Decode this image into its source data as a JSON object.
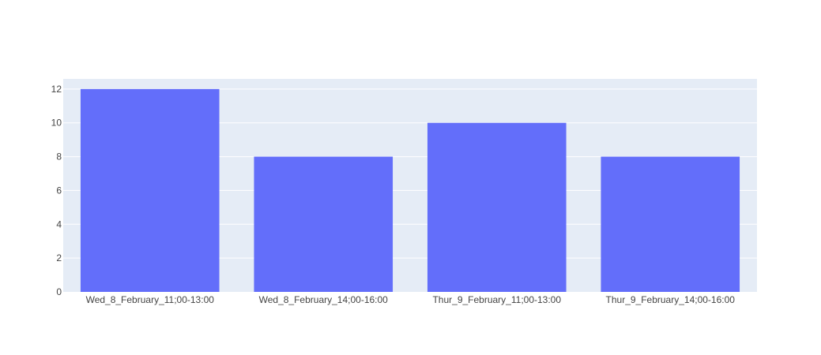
{
  "chart_data": {
    "type": "bar",
    "categories": [
      "Wed_8_February_11;00-13:00",
      "Wed_8_February_14;00-16:00",
      "Thur_9_February_11;00-13:00",
      "Thur_9_February_14;00-16:00"
    ],
    "values": [
      12,
      8,
      10,
      8
    ],
    "ylim": [
      0,
      12.6
    ],
    "yticks": [
      0,
      2,
      4,
      6,
      8,
      10,
      12
    ],
    "grid": true,
    "legend": "none",
    "title": "",
    "xlabel": "",
    "ylabel": ""
  },
  "colors": {
    "bar": "#636efa",
    "plot_background": "#e5ecf6",
    "gridline": "#ffffff",
    "tick_text": "#444444",
    "paper": "#ffffff"
  }
}
